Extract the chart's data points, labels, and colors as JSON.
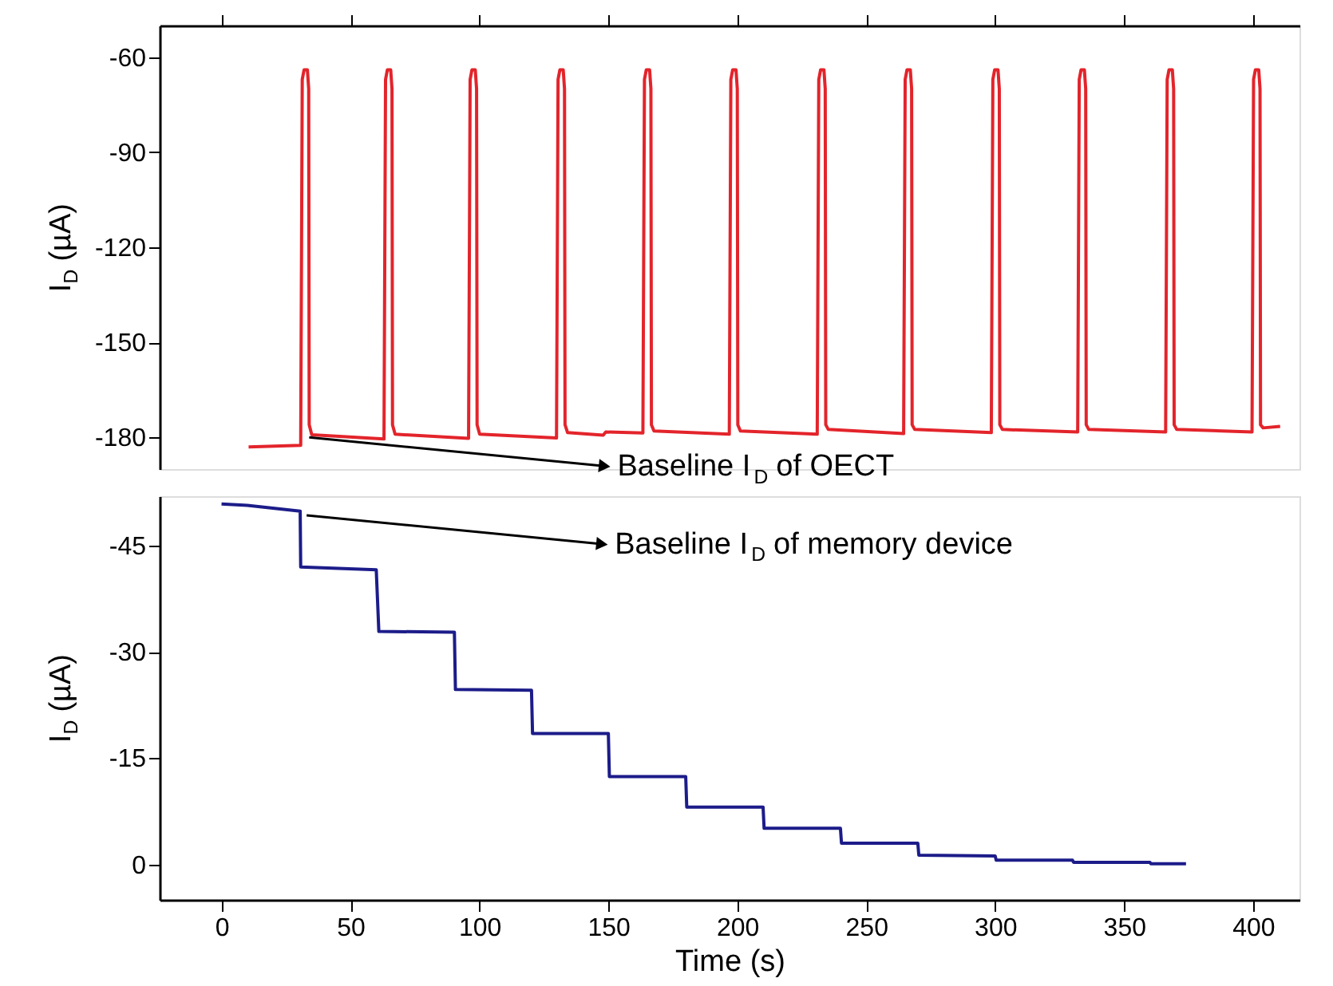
{
  "chart_data": [
    {
      "type": "line",
      "ylabel": "I$_{D}$ (µA)",
      "xlim": [
        -24,
        418
      ],
      "ylim": [
        -190,
        -50
      ],
      "xticks": [
        0,
        50,
        100,
        150,
        200,
        250,
        300,
        350,
        400
      ],
      "yticks": [
        -60,
        -90,
        -120,
        -150,
        -180
      ],
      "tick_labels": "y",
      "grid": false,
      "series": [
        {
          "color": "#e3242b",
          "x": [
            10.5,
            30.7,
            31.3,
            32,
            33.3,
            33.8,
            34,
            35,
            63.0,
            63.6,
            64.3,
            65.6,
            66.1,
            66.3,
            67.3,
            95.8,
            96.4,
            97.1,
            98.4,
            98.9,
            99.1,
            100.1,
            129.9,
            130.5,
            131.2,
            132.5,
            133,
            133.2,
            134.2,
            148,
            149,
            163.4,
            164,
            164.7,
            166,
            166.5,
            166.7,
            167.7,
            196.9,
            197.5,
            198.2,
            199.5,
            200,
            200.2,
            201.2,
            231,
            231.6,
            232.3,
            233.6,
            234.1,
            234.3,
            235.3,
            264.5,
            265.1,
            265.8,
            267.1,
            267.6,
            267.8,
            268.8,
            298.5,
            299.1,
            299.8,
            301.1,
            301.6,
            301.8,
            302.8,
            332,
            332.6,
            333.3,
            334.6,
            335.1,
            335.3,
            336.3,
            366.1,
            366.7,
            367.4,
            368.7,
            369.2,
            369.4,
            370.4,
            399.6,
            400.2,
            400.9,
            402.2,
            402.7,
            402.9,
            403.9,
            410.5
          ],
          "values": [
            -183,
            -182.5,
            -67,
            -64,
            -64,
            -70,
            -176,
            -179.2,
            -180.5,
            -67,
            -64,
            -64,
            -70,
            -176,
            -179,
            -180.3,
            -67,
            -64,
            -64,
            -70,
            -176,
            -179,
            -180.2,
            -67,
            -64,
            -64,
            -70,
            -176,
            -178.5,
            -179.3,
            -178.3,
            -178.6,
            -67,
            -64,
            -64,
            -70,
            -176,
            -178,
            -179,
            -67,
            -64,
            -64,
            -70,
            -176,
            -178,
            -179,
            -67,
            -64,
            -64,
            -70,
            -176,
            -177.5,
            -178.8,
            -67,
            -64,
            -64,
            -70,
            -176,
            -177.5,
            -178.5,
            -67,
            -64,
            -64,
            -70,
            -176,
            -177.5,
            -178.3,
            -67,
            -64,
            -64,
            -70,
            -176,
            -177.5,
            -178.3,
            -67,
            -64,
            -64,
            -70,
            -176,
            -177.5,
            -178.3,
            -67,
            -64,
            -64,
            -70,
            -176,
            -177,
            -176.5
          ]
        }
      ],
      "annotations": [
        {
          "text": "Baseline I$_{D}$ of OECT",
          "x": 34,
          "y": -180
        }
      ]
    },
    {
      "type": "line",
      "ylabel": "I$_{D}$ (µA)",
      "xlabel": "Time (s)",
      "xlim": [
        -24,
        418
      ],
      "ylim": [
        5,
        -52
      ],
      "xticks": [
        0,
        50,
        100,
        150,
        200,
        250,
        300,
        350,
        400
      ],
      "yticks": [
        -45,
        -30,
        -15,
        0
      ],
      "grid": false,
      "series": [
        {
          "color": "#1c1c8a",
          "x": [
            0,
            10,
            30.5,
            30.7,
            60,
            61,
            90.3,
            90.7,
            120.2,
            120.6,
            150,
            150.4,
            180,
            180.4,
            210,
            210.4,
            240,
            240.4,
            270,
            270.4,
            300,
            300.4,
            330,
            330.4,
            360,
            360.4,
            374
          ],
          "values": [
            -50.9,
            -50.7,
            -49.9,
            -42,
            -41.6,
            -32.9,
            -32.8,
            -24.7,
            -24.6,
            -18.5,
            -18.5,
            -12.4,
            -12.4,
            -8.1,
            -8.1,
            -5.1,
            -5.1,
            -3,
            -3,
            -1.3,
            -1.2,
            -0.6,
            -0.6,
            -0.3,
            -0.3,
            -0.1,
            -0.1
          ]
        }
      ],
      "annotations": [
        {
          "text": "Baseline I$_{D}$ of memory device",
          "x": 33,
          "y": -49.3
        }
      ]
    }
  ]
}
